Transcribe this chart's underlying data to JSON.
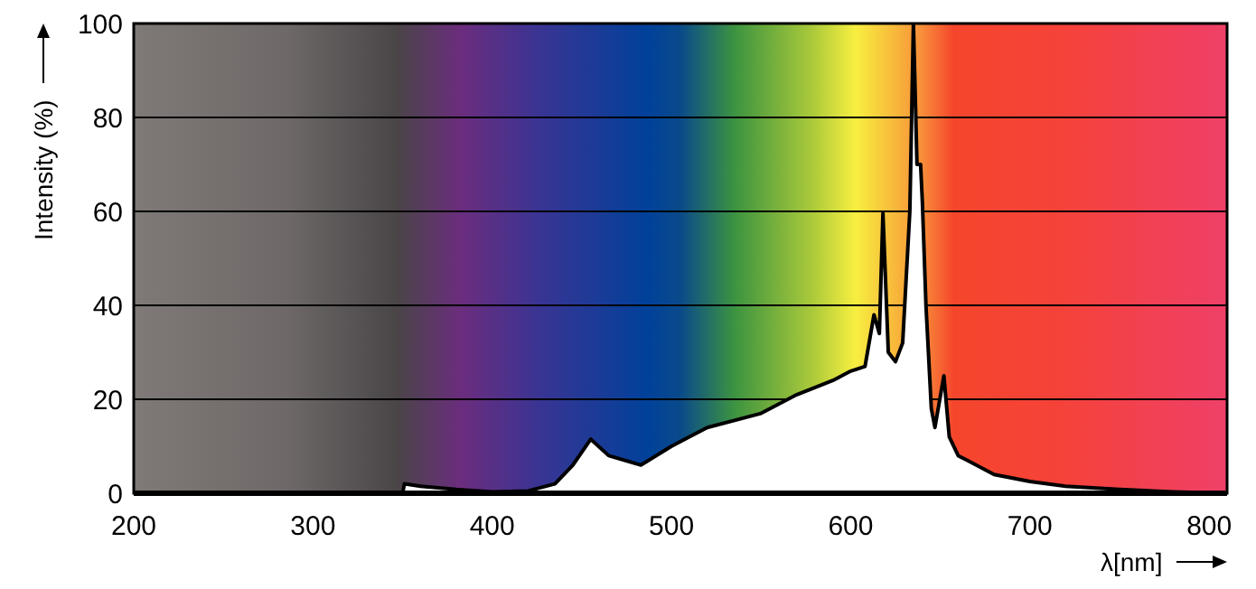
{
  "chart_data": {
    "type": "area",
    "xlabel": "λ[nm]",
    "ylabel": "Intensity (%)",
    "xlim": [
      200,
      810
    ],
    "ylim": [
      0,
      100
    ],
    "xticks": [
      200,
      300,
      400,
      500,
      600,
      700,
      800
    ],
    "yticks": [
      0,
      20,
      40,
      60,
      80,
      100
    ],
    "grid": "y",
    "series": [
      {
        "color": "#ffffff",
        "x": [
          350,
          351,
          360,
          380,
          400,
          420,
          435,
          445,
          455,
          465,
          483,
          500,
          520,
          550,
          570,
          590,
          600,
          608,
          613,
          616,
          618,
          621,
          625,
          629,
          633,
          635,
          637,
          639,
          640,
          642,
          645,
          647,
          652,
          655,
          660,
          665,
          680,
          700,
          720,
          750,
          780,
          810
        ],
        "values": [
          0,
          2,
          1.5,
          0.8,
          0.3,
          0.5,
          2,
          6,
          11.5,
          8,
          6,
          10,
          14,
          17,
          21,
          24,
          26,
          27,
          38,
          34,
          59.6,
          30,
          28,
          32,
          60,
          100,
          70,
          70,
          62,
          40,
          18,
          14,
          25,
          12,
          8,
          7,
          4,
          2.5,
          1.5,
          0.8,
          0.3,
          0
        ]
      }
    ]
  }
}
